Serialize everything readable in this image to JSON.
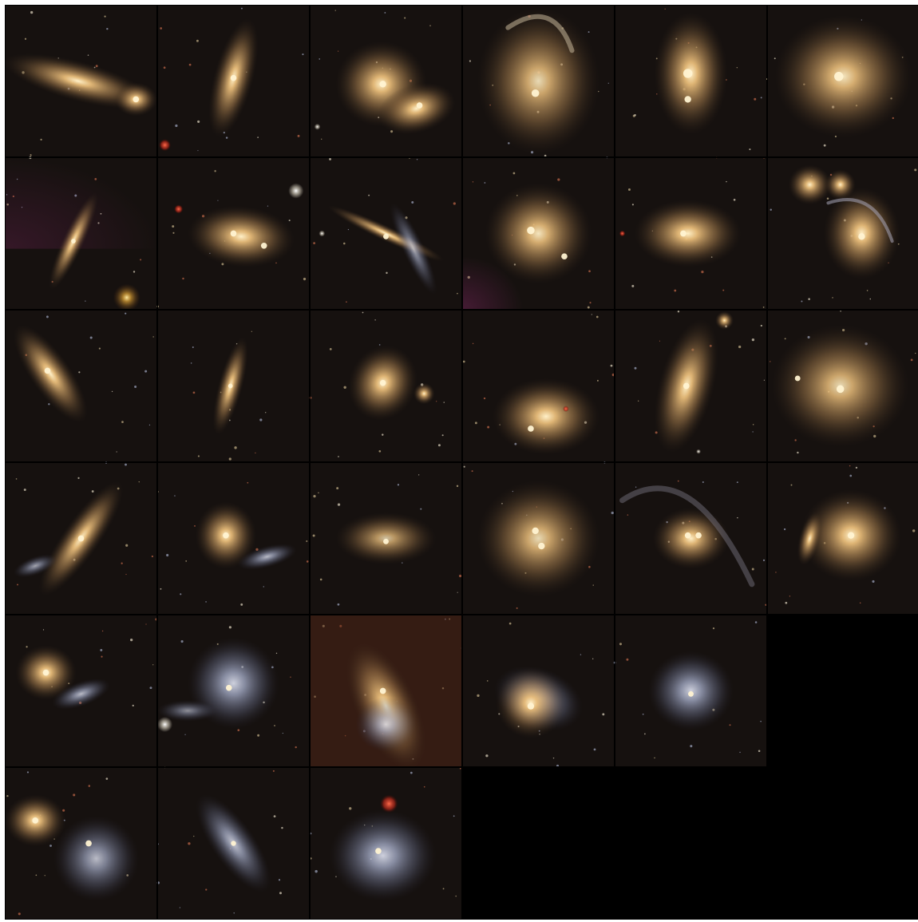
{
  "mosaic": {
    "rows": 6,
    "cols": 6,
    "background_color": "#000000",
    "sky_color": "#16110f",
    "empty_color": "#000000",
    "galaxy_colors": {
      "core": "#f6d9a6",
      "bulge": "#d8a968",
      "halo": "#8b6a45",
      "blue_disk": "#9aa4c4",
      "red_star": "#c83a22"
    },
    "tiles": [
      {
        "r": 0,
        "c": 0,
        "kind": "galaxy",
        "label": "elongated-galaxy-pair"
      },
      {
        "r": 0,
        "c": 1,
        "kind": "galaxy",
        "label": "edge-on-galaxy"
      },
      {
        "r": 0,
        "c": 2,
        "kind": "galaxy",
        "label": "merging-pair"
      },
      {
        "r": 0,
        "c": 3,
        "kind": "galaxy",
        "label": "tidal-arc-merger"
      },
      {
        "r": 0,
        "c": 4,
        "kind": "galaxy",
        "label": "double-nucleus"
      },
      {
        "r": 0,
        "c": 5,
        "kind": "galaxy",
        "label": "large-elliptical"
      },
      {
        "r": 1,
        "c": 0,
        "kind": "galaxy",
        "label": "thin-edge-on-with-star"
      },
      {
        "r": 1,
        "c": 1,
        "kind": "galaxy",
        "label": "interacting-pair"
      },
      {
        "r": 1,
        "c": 2,
        "kind": "galaxy",
        "label": "crossing-disks"
      },
      {
        "r": 1,
        "c": 3,
        "kind": "galaxy",
        "label": "elliptical-with-companion"
      },
      {
        "r": 1,
        "c": 4,
        "kind": "galaxy",
        "label": "disturbed-disk"
      },
      {
        "r": 1,
        "c": 5,
        "kind": "galaxy",
        "label": "spiral-with-companion"
      },
      {
        "r": 2,
        "c": 0,
        "kind": "galaxy",
        "label": "tilted-disk"
      },
      {
        "r": 2,
        "c": 1,
        "kind": "galaxy",
        "label": "faint-edge-on"
      },
      {
        "r": 2,
        "c": 2,
        "kind": "galaxy",
        "label": "spiral-arms"
      },
      {
        "r": 2,
        "c": 3,
        "kind": "galaxy",
        "label": "tidal-debris"
      },
      {
        "r": 2,
        "c": 4,
        "kind": "galaxy",
        "label": "long-spiral-with-plume"
      },
      {
        "r": 2,
        "c": 5,
        "kind": "galaxy",
        "label": "ring-spiral-pair"
      },
      {
        "r": 3,
        "c": 0,
        "kind": "galaxy",
        "label": "diagonal-disk"
      },
      {
        "r": 3,
        "c": 1,
        "kind": "galaxy",
        "label": "pair-blue-companion"
      },
      {
        "r": 3,
        "c": 2,
        "kind": "galaxy",
        "label": "faint-merger"
      },
      {
        "r": 3,
        "c": 3,
        "kind": "galaxy",
        "label": "double-core-elliptical"
      },
      {
        "r": 3,
        "c": 4,
        "kind": "galaxy",
        "label": "tidal-tails"
      },
      {
        "r": 3,
        "c": 5,
        "kind": "galaxy",
        "label": "face-on-spiral"
      },
      {
        "r": 4,
        "c": 0,
        "kind": "galaxy",
        "label": "pair-blue-disk"
      },
      {
        "r": 4,
        "c": 1,
        "kind": "galaxy",
        "label": "blue-spiral-merger"
      },
      {
        "r": 4,
        "c": 2,
        "kind": "galaxy",
        "label": "reddish-field-pair"
      },
      {
        "r": 4,
        "c": 3,
        "kind": "galaxy",
        "label": "overlapping-pair"
      },
      {
        "r": 4,
        "c": 4,
        "kind": "galaxy",
        "label": "blue-irregular"
      },
      {
        "r": 4,
        "c": 5,
        "kind": "empty",
        "label": ""
      },
      {
        "r": 5,
        "c": 0,
        "kind": "galaxy",
        "label": "wide-pair"
      },
      {
        "r": 5,
        "c": 1,
        "kind": "galaxy",
        "label": "blue-elongated"
      },
      {
        "r": 5,
        "c": 2,
        "kind": "galaxy",
        "label": "blue-triple-with-red-star"
      },
      {
        "r": 5,
        "c": 3,
        "kind": "empty",
        "label": ""
      },
      {
        "r": 5,
        "c": 4,
        "kind": "empty",
        "label": ""
      },
      {
        "r": 5,
        "c": 5,
        "kind": "empty",
        "label": ""
      }
    ]
  }
}
